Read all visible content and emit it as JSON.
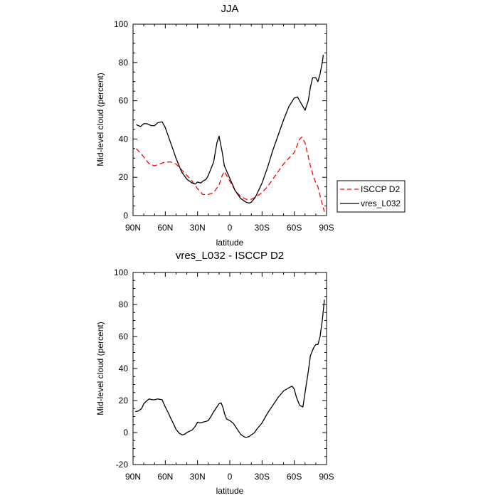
{
  "chart_data": [
    {
      "type": "line",
      "title": "JJA",
      "xlabel": "latitude",
      "ylabel": "Mid-level cloud (percent)",
      "xlim": [
        90,
        -90
      ],
      "ylim": [
        0,
        100
      ],
      "x_tick_values": [
        90,
        60,
        30,
        0,
        -30,
        -60,
        -90
      ],
      "x_tick_labels": [
        "90N",
        "60N",
        "30N",
        "0",
        "30S",
        "60S",
        "90S"
      ],
      "y_tick_values": [
        0,
        20,
        40,
        60,
        80,
        100
      ],
      "y_tick_labels": [
        "0",
        "20",
        "40",
        "60",
        "80",
        "100"
      ],
      "legend_position": "right",
      "series": [
        {
          "name": "ISCCP D2",
          "color": "#ff0000",
          "style": "dashed",
          "x": [
            87,
            82,
            75,
            70,
            65,
            60,
            55,
            50,
            45,
            40,
            35,
            30,
            25,
            20,
            15,
            10,
            7,
            5,
            0,
            -5,
            -10,
            -15,
            -20,
            -25,
            -30,
            -35,
            -40,
            -45,
            -50,
            -55,
            -60,
            -65,
            -67,
            -70,
            -75,
            -78,
            -80,
            -82,
            -85,
            -88
          ],
          "y": [
            35,
            32,
            27,
            26,
            27,
            28,
            28,
            27,
            24,
            21,
            18,
            14,
            11,
            11,
            12,
            16,
            21,
            23,
            18,
            13,
            10,
            8.5,
            8.5,
            10,
            12,
            15,
            19,
            23,
            27,
            30,
            33,
            40,
            41,
            38,
            26,
            20,
            17,
            15,
            8,
            2
          ]
        },
        {
          "name": "vres_L032",
          "color": "#000000",
          "style": "solid",
          "x": [
            87,
            85,
            83,
            80,
            77,
            73,
            70,
            67,
            63,
            60,
            55,
            50,
            45,
            40,
            35,
            32,
            30,
            27,
            25,
            22,
            20,
            15,
            12,
            10,
            7,
            5,
            2,
            0,
            -5,
            -10,
            -15,
            -18,
            -20,
            -23,
            -25,
            -30,
            -35,
            -40,
            -45,
            -50,
            -55,
            -60,
            -63,
            -66,
            -70,
            -73,
            -75,
            -77,
            -80,
            -82,
            -84,
            -86,
            -87
          ],
          "y": [
            47.5,
            47,
            46.5,
            48,
            48,
            47,
            47,
            48.5,
            49,
            46,
            38,
            30,
            23,
            19,
            17,
            16.5,
            17.5,
            17,
            18,
            19,
            21,
            28,
            38,
            41.5,
            33,
            26,
            22,
            19.5,
            13,
            9,
            7,
            6.5,
            7,
            9,
            11,
            17,
            25,
            34,
            42,
            50,
            57,
            61.5,
            62,
            59,
            55,
            60,
            67,
            72,
            72,
            70,
            74,
            80,
            84
          ]
        }
      ]
    },
    {
      "type": "line",
      "title": "vres_L032 - ISCCP D2",
      "xlabel": "latitude",
      "ylabel": "Mid-level cloud (percent)",
      "xlim": [
        90,
        -90
      ],
      "ylim": [
        -20,
        100
      ],
      "x_tick_values": [
        90,
        60,
        30,
        0,
        -30,
        -60,
        -90
      ],
      "x_tick_labels": [
        "90N",
        "60N",
        "30N",
        "0",
        "30S",
        "60S",
        "90S"
      ],
      "y_tick_values": [
        -20,
        0,
        20,
        40,
        60,
        80,
        100
      ],
      "y_tick_labels": [
        "-20",
        "0",
        "20",
        "40",
        "60",
        "80",
        "100"
      ],
      "series": [
        {
          "color": "#000000",
          "style": "solid",
          "x": [
            88,
            85,
            82,
            80,
            77,
            75,
            72,
            70,
            67,
            63,
            60,
            57,
            55,
            52,
            50,
            47,
            44,
            42,
            40,
            37,
            35,
            32,
            30,
            27,
            25,
            22,
            20,
            18,
            15,
            12,
            10,
            8,
            6,
            5,
            3,
            0,
            -3,
            -5,
            -8,
            -10,
            -13,
            -15,
            -18,
            -20,
            -23,
            -25,
            -30,
            -35,
            -40,
            -45,
            -50,
            -55,
            -58,
            -60,
            -62,
            -65,
            -68,
            -70,
            -73,
            -75,
            -78,
            -80,
            -82,
            -84,
            -86,
            -88
          ],
          "y": [
            13,
            13.5,
            15,
            18,
            20,
            21,
            20.5,
            20.5,
            21,
            20.5,
            16,
            12,
            9,
            5,
            2,
            -0.5,
            -1.5,
            -1,
            0,
            1,
            1.5,
            4,
            6.5,
            6,
            6.5,
            7,
            7.5,
            9.5,
            13,
            16,
            18,
            18.5,
            15,
            12,
            8.5,
            7.5,
            6,
            4,
            1,
            -1,
            -2.5,
            -3,
            -2.5,
            -1.5,
            0,
            2,
            6,
            12,
            17,
            22,
            26,
            28,
            29,
            27,
            22,
            17,
            16,
            25,
            38,
            48,
            53,
            55,
            55,
            60,
            70,
            83
          ]
        }
      ]
    }
  ]
}
